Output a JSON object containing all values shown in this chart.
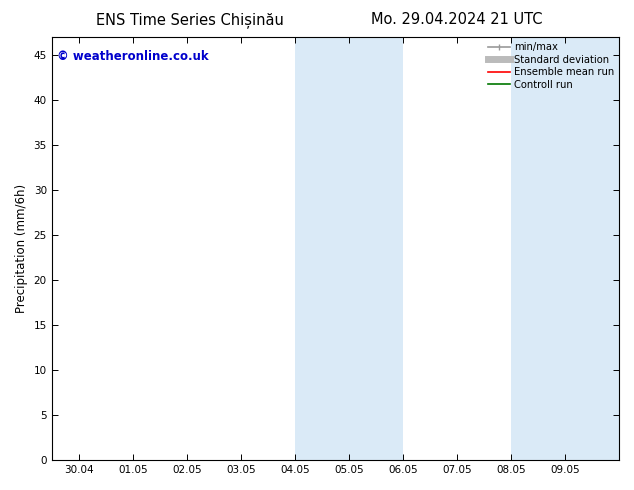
{
  "title_left": "ENS Time Series Chișinău",
  "title_right": "Mo. 29.04.2024 21 UTC",
  "ylabel": "Precipitation (mm/6h)",
  "xlim_dates": [
    "30.04",
    "01.05",
    "02.05",
    "03.05",
    "04.05",
    "05.05",
    "06.05",
    "07.05",
    "08.05",
    "09.05"
  ],
  "ylim": [
    0,
    47
  ],
  "yticks": [
    0,
    5,
    10,
    15,
    20,
    25,
    30,
    35,
    40,
    45
  ],
  "background_color": "#ffffff",
  "plot_bg_color": "#ffffff",
  "shaded_regions": [
    {
      "xstart": 4.0,
      "xend": 5.0,
      "color": "#daeaf7"
    },
    {
      "xstart": 5.0,
      "xend": 6.0,
      "color": "#daeaf7"
    },
    {
      "xstart": 8.0,
      "xend": 9.0,
      "color": "#daeaf7"
    },
    {
      "xstart": 9.0,
      "xend": 10.0,
      "color": "#daeaf7"
    }
  ],
  "watermark_text": "© weatheronline.co.uk",
  "watermark_color": "#0000cc",
  "legend_items": [
    {
      "label": "min/max",
      "color": "#999999",
      "lw": 1.2,
      "style": "line_with_caps"
    },
    {
      "label": "Standard deviation",
      "color": "#bbbbbb",
      "lw": 5,
      "style": "line"
    },
    {
      "label": "Ensemble mean run",
      "color": "#ff0000",
      "lw": 1.2,
      "style": "line"
    },
    {
      "label": "Controll run",
      "color": "#007700",
      "lw": 1.2,
      "style": "line"
    }
  ],
  "tick_label_fontsize": 7.5,
  "axis_label_fontsize": 8.5,
  "title_fontsize": 10.5,
  "watermark_fontsize": 8.5,
  "spine_color": "#000000",
  "tick_color": "#000000",
  "xlim": [
    -0.5,
    10.0
  ],
  "n_xticks": 10
}
